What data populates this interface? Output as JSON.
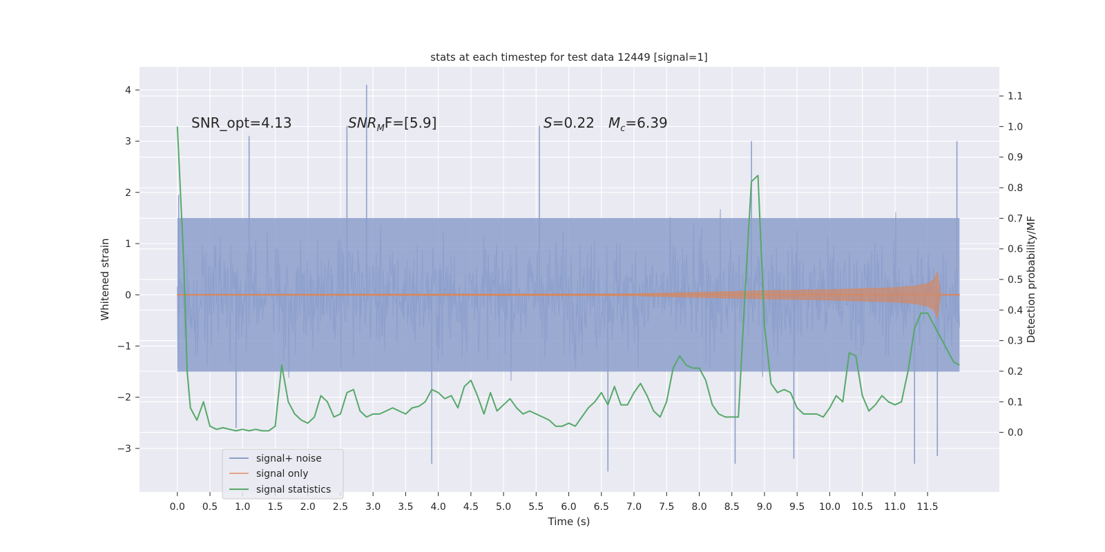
{
  "chart_data": {
    "type": "line",
    "title": "stats at each timestep for test data 12449 [signal=1]",
    "xlabel": "Time (s)",
    "ylabel_left": "Whitened strain",
    "ylabel_right": "Detection probability/MF",
    "xlim": [
      -0.58,
      12.6
    ],
    "ylim_left": [
      -3.85,
      4.45
    ],
    "ylim_right": [
      -0.195,
      1.195
    ],
    "x_ticks": [
      0.0,
      0.5,
      1.0,
      1.5,
      2.0,
      2.5,
      3.0,
      3.5,
      4.0,
      4.5,
      5.0,
      5.5,
      6.0,
      6.5,
      7.0,
      7.5,
      8.0,
      8.5,
      9.0,
      9.5,
      10.0,
      10.5,
      11.0,
      11.5
    ],
    "x_tick_labels": [
      "0.0",
      "0.5",
      "1.0",
      "1.5",
      "2.0",
      "2.5",
      "3.0",
      "3.5",
      "4.0",
      "4.5",
      "5.0",
      "5.5",
      "6.0",
      "6.5",
      "7.0",
      "7.5",
      "8.0",
      "8.5",
      "9.0",
      "9.5",
      "10.0",
      "10.5",
      "11.0",
      "11.5"
    ],
    "y_left_ticks": [
      4,
      3,
      2,
      1,
      0,
      -1,
      -2,
      -3
    ],
    "y_left_tick_labels": [
      "4",
      "3",
      "2",
      "1",
      "0",
      "−1",
      "−2",
      "−3"
    ],
    "y_right_ticks": [
      1.1,
      1.0,
      0.9,
      0.8,
      0.7,
      0.6,
      0.5,
      0.4,
      0.3,
      0.2,
      0.1,
      0.0
    ],
    "y_right_tick_labels": [
      "1.1",
      "1.0",
      "0.9",
      "0.8",
      "0.7",
      "0.6",
      "0.5",
      "0.4",
      "0.3",
      "0.2",
      "0.1",
      "0.0"
    ],
    "annotations": [
      {
        "text": "SNR_opt=4.13"
      },
      {
        "text_main": "SNR",
        "text_sub": "M",
        "text_rest": "F=[5.9]"
      },
      {
        "text_main": "S",
        "text_rest": "=0.22"
      },
      {
        "text_main": "M",
        "text_sub": "c",
        "text_rest": "=6.39"
      }
    ],
    "legend": {
      "placement": "lower-left",
      "entries": [
        "signal+ noise",
        "signal only",
        "signal statistics"
      ]
    },
    "series": [
      {
        "name": "signal+ noise",
        "axis": "left",
        "color": "#8c9fcb",
        "x_range": [
          0.0,
          11.99
        ],
        "typical_amplitude": 1.5,
        "peak_x": [
          0.02,
          0.9,
          1.1,
          2.6,
          2.9,
          3.9,
          5.55,
          6.6,
          8.55,
          8.8,
          9.45,
          11.3,
          11.65,
          11.95
        ],
        "peak_y": [
          1.95,
          -2.6,
          3.1,
          3.3,
          4.1,
          -3.3,
          3.3,
          -3.45,
          -3.3,
          3.0,
          -3.2,
          -3.3,
          -3.15,
          3.0
        ]
      },
      {
        "name": "signal only",
        "axis": "left",
        "color": "#dd8452",
        "x": [
          0.0,
          7.0,
          8.0,
          9.0,
          10.0,
          10.5,
          11.0,
          11.3,
          11.5,
          11.6,
          11.65,
          11.7,
          11.99
        ],
        "envelope": [
          0.01,
          0.02,
          0.05,
          0.08,
          0.1,
          0.12,
          0.14,
          0.17,
          0.22,
          0.3,
          0.45,
          0.01,
          0.01
        ]
      },
      {
        "name": "signal statistics",
        "axis": "right",
        "color": "#55a868",
        "x": [
          0.0,
          0.1,
          0.15,
          0.2,
          0.3,
          0.4,
          0.5,
          0.6,
          0.7,
          0.8,
          0.9,
          1.0,
          1.1,
          1.2,
          1.3,
          1.4,
          1.5,
          1.6,
          1.7,
          1.8,
          1.9,
          2.0,
          2.1,
          2.2,
          2.3,
          2.4,
          2.5,
          2.6,
          2.7,
          2.8,
          2.9,
          3.0,
          3.1,
          3.2,
          3.3,
          3.4,
          3.5,
          3.6,
          3.7,
          3.8,
          3.9,
          4.0,
          4.1,
          4.2,
          4.3,
          4.4,
          4.5,
          4.6,
          4.7,
          4.8,
          4.9,
          5.0,
          5.1,
          5.2,
          5.3,
          5.4,
          5.5,
          5.6,
          5.7,
          5.8,
          5.9,
          6.0,
          6.1,
          6.2,
          6.3,
          6.4,
          6.5,
          6.6,
          6.7,
          6.8,
          6.9,
          7.0,
          7.1,
          7.2,
          7.3,
          7.4,
          7.5,
          7.6,
          7.7,
          7.8,
          7.9,
          8.0,
          8.1,
          8.2,
          8.3,
          8.4,
          8.5,
          8.6,
          8.7,
          8.8,
          8.9,
          9.0,
          9.1,
          9.2,
          9.3,
          9.4,
          9.5,
          9.6,
          9.7,
          9.8,
          9.9,
          10.0,
          10.1,
          10.2,
          10.3,
          10.4,
          10.5,
          10.6,
          10.7,
          10.8,
          10.9,
          11.0,
          11.1,
          11.2,
          11.3,
          11.4,
          11.5,
          11.6,
          11.7,
          11.8,
          11.9,
          11.99
        ],
        "values": [
          1.0,
          0.55,
          0.2,
          0.08,
          0.04,
          0.1,
          0.02,
          0.01,
          0.015,
          0.01,
          0.005,
          0.01,
          0.005,
          0.01,
          0.005,
          0.005,
          0.02,
          0.22,
          0.1,
          0.06,
          0.04,
          0.03,
          0.05,
          0.12,
          0.1,
          0.05,
          0.06,
          0.13,
          0.14,
          0.07,
          0.05,
          0.06,
          0.06,
          0.07,
          0.08,
          0.07,
          0.06,
          0.08,
          0.085,
          0.1,
          0.14,
          0.13,
          0.11,
          0.12,
          0.08,
          0.15,
          0.17,
          0.12,
          0.06,
          0.13,
          0.07,
          0.09,
          0.11,
          0.08,
          0.06,
          0.07,
          0.06,
          0.05,
          0.04,
          0.02,
          0.02,
          0.03,
          0.02,
          0.05,
          0.08,
          0.1,
          0.13,
          0.09,
          0.15,
          0.09,
          0.09,
          0.13,
          0.16,
          0.12,
          0.07,
          0.05,
          0.1,
          0.21,
          0.25,
          0.22,
          0.21,
          0.21,
          0.17,
          0.09,
          0.06,
          0.05,
          0.05,
          0.05,
          0.45,
          0.82,
          0.84,
          0.35,
          0.16,
          0.13,
          0.14,
          0.13,
          0.08,
          0.06,
          0.06,
          0.06,
          0.05,
          0.08,
          0.12,
          0.1,
          0.26,
          0.25,
          0.12,
          0.07,
          0.09,
          0.12,
          0.1,
          0.09,
          0.1,
          0.2,
          0.34,
          0.39,
          0.39,
          0.35,
          0.31,
          0.27,
          0.23,
          0.22
        ]
      }
    ]
  }
}
